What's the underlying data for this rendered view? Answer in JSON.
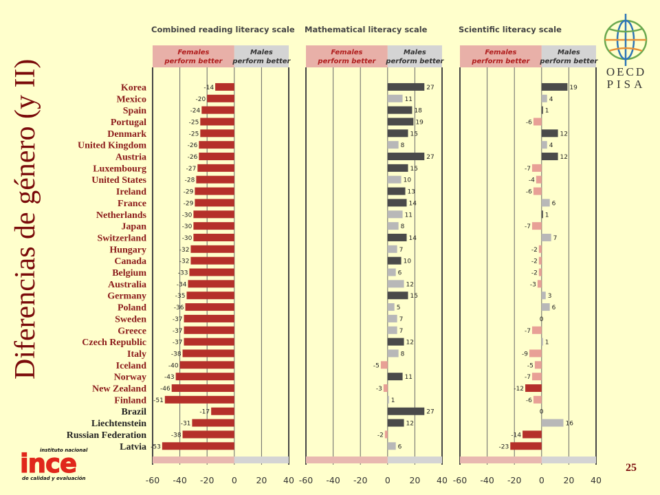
{
  "slide": {
    "title": "Diferencias de género (y II)",
    "page_number": "25",
    "logos": {
      "oecd_line1": "OECD",
      "oecd_line2": "PISA",
      "ince_name": "ince",
      "ince_top": "instituto nacional",
      "ince_bottom": "de calidad y evaluación"
    }
  },
  "colors": {
    "background": "#ffffcc",
    "female_bar": "#b5302a",
    "female_bar_light": "#e8a096",
    "male_bar_dark": "#4a4a4a",
    "male_bar_light": "#b8b8b8",
    "female_header": "#e8b0a8",
    "male_header": "#d4d4d4",
    "country_red": "#8b1a1a",
    "country_dark": "#222222"
  },
  "chart_data": {
    "type": "bar",
    "orientation": "horizontal",
    "categories": [
      "Korea",
      "Mexico",
      "Spain",
      "Portugal",
      "Denmark",
      "United Kingdom",
      "Austria",
      "Luxembourg",
      "United States",
      "Ireland",
      "France",
      "Netherlands",
      "Japan",
      "Switzerland",
      "Hungary",
      "Canada",
      "Belgium",
      "Australia",
      "Germany",
      "Poland",
      "Sweden",
      "Greece",
      "Czech Republic",
      "Italy",
      "Iceland",
      "Norway",
      "New Zealand",
      "Finland",
      "Brazil",
      "Liechtenstein",
      "Russian Federation",
      "Latvia"
    ],
    "category_styles": [
      "red",
      "red",
      "red",
      "red",
      "red",
      "red",
      "red",
      "red",
      "red",
      "red",
      "red",
      "red",
      "red",
      "red",
      "red",
      "red",
      "red",
      "red",
      "red",
      "red",
      "red",
      "red",
      "red",
      "red",
      "red",
      "red",
      "red",
      "red",
      "dark",
      "dark",
      "dark",
      "dark"
    ],
    "xlim": [
      -60,
      40
    ],
    "xticks": [
      "-60",
      "-40",
      "-20",
      "0",
      "20",
      "40"
    ],
    "series": [
      {
        "name": "Combined reading literacy scale",
        "header_left": "Females perform better",
        "header_right": "Males perform better",
        "values": [
          -14,
          -20,
          -24,
          -25,
          -25,
          -26,
          -26,
          -27,
          -28,
          -29,
          -29,
          -30,
          -30,
          -30,
          -32,
          -32,
          -33,
          -34,
          -35,
          -36,
          -37,
          -37,
          -37,
          -38,
          -40,
          -43,
          -46,
          -51,
          -17,
          -31,
          -38,
          -53
        ],
        "labels": [
          "-14",
          "-20",
          "-24",
          "-25",
          "-25",
          "-26",
          "-26",
          "-27",
          "-28",
          "-29",
          "-29",
          "-30",
          "-30",
          "-30",
          "-32",
          "-32",
          "-33",
          "-34",
          "-35",
          "-36",
          "-37",
          "-37",
          "-37",
          "-38",
          "-40",
          "-43",
          "-46",
          "-51",
          "-17",
          "-31",
          "-38",
          "-53"
        ],
        "significant": [
          true,
          true,
          true,
          true,
          true,
          true,
          true,
          true,
          true,
          true,
          true,
          true,
          true,
          true,
          true,
          true,
          true,
          true,
          true,
          true,
          true,
          true,
          true,
          true,
          true,
          true,
          true,
          true,
          true,
          true,
          true,
          true
        ]
      },
      {
        "name": "Mathematical literacy scale",
        "header_left": "Females perform better",
        "header_right": "Males perform better",
        "values": [
          27,
          11,
          18,
          19,
          15,
          8,
          27,
          15,
          10,
          13,
          14,
          11,
          8,
          14,
          7,
          10,
          6,
          12,
          15,
          5,
          7,
          7,
          12,
          8,
          -5,
          11,
          -3,
          1,
          27,
          12,
          -2,
          6
        ],
        "labels": [
          "27",
          "11",
          "18",
          "19",
          "15",
          "8",
          "27",
          "15",
          "10",
          "13",
          "14",
          "11",
          "8",
          "14",
          "7",
          "10",
          "6",
          "12",
          "15",
          "5",
          "7",
          "7",
          "12",
          "8",
          "-5",
          "11",
          "-3",
          "1",
          "27",
          "12",
          "-2",
          "6"
        ],
        "significant": [
          true,
          false,
          true,
          true,
          true,
          false,
          true,
          true,
          false,
          true,
          true,
          false,
          false,
          true,
          false,
          true,
          false,
          false,
          true,
          false,
          false,
          false,
          true,
          false,
          false,
          true,
          false,
          false,
          true,
          true,
          false,
          false
        ]
      },
      {
        "name": "Scientific literacy scale",
        "header_left": "Females perform better",
        "header_right": "Males perform better",
        "values": [
          19,
          4,
          1,
          -6,
          12,
          4,
          12,
          -7,
          -4,
          -6,
          6,
          1,
          -7,
          7,
          -2,
          -2,
          -2,
          -3,
          3,
          6,
          0,
          -7,
          1,
          -9,
          -5,
          -7,
          -12,
          -6,
          0,
          16,
          -14,
          -23
        ],
        "labels": [
          "19",
          "4",
          "1",
          "-6",
          "12",
          "4",
          "12",
          "-7",
          "-4",
          "-6",
          "6",
          "1",
          "-7",
          "7",
          "-2",
          "-2",
          "-2",
          "-3",
          "3",
          "6",
          "0",
          "-7",
          "1",
          "-9",
          "-5",
          "-7",
          "-12",
          "-6",
          "0",
          "16",
          "-14",
          "-23"
        ],
        "significant": [
          true,
          false,
          true,
          false,
          true,
          false,
          true,
          false,
          false,
          false,
          false,
          true,
          false,
          false,
          false,
          false,
          false,
          false,
          false,
          false,
          false,
          false,
          false,
          false,
          false,
          false,
          true,
          false,
          false,
          false,
          true,
          true
        ]
      }
    ]
  }
}
